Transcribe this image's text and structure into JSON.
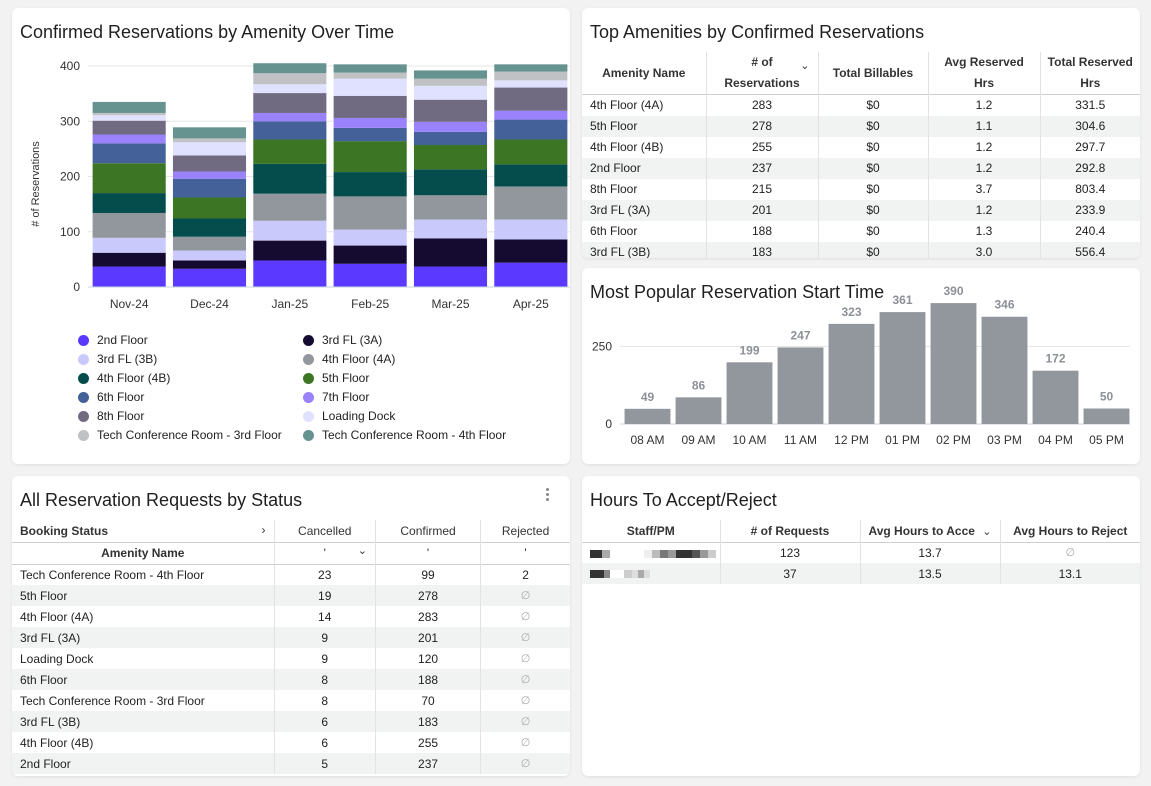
{
  "cards": {
    "stacked": {
      "title": "Confirmed Reservations by Amenity Over Time"
    },
    "top_amenities": {
      "title": "Top Amenities by Confirmed Reservations",
      "columns": [
        "Amenity Name",
        "# of Reservations",
        "Total Billables",
        "Avg Reserved Hrs",
        "Total Reserved Hrs"
      ],
      "column_lines": [
        [
          "Amenity Name"
        ],
        [
          "# of",
          "Reservations"
        ],
        [
          "Total Billables"
        ],
        [
          "Avg Reserved",
          "Hrs"
        ],
        [
          "Total Reserved",
          "Hrs"
        ]
      ],
      "sorted_column": "# of Reservations",
      "rows": [
        [
          "4th Floor (4A)",
          "283",
          "$0",
          "1.2",
          "331.5"
        ],
        [
          "5th Floor",
          "278",
          "$0",
          "1.1",
          "304.6"
        ],
        [
          "4th Floor (4B)",
          "255",
          "$0",
          "1.2",
          "297.7"
        ],
        [
          "2nd Floor",
          "237",
          "$0",
          "1.2",
          "292.8"
        ],
        [
          "8th Floor",
          "215",
          "$0",
          "3.7",
          "803.4"
        ],
        [
          "3rd FL (3A)",
          "201",
          "$0",
          "1.2",
          "233.9"
        ],
        [
          "6th Floor",
          "188",
          "$0",
          "1.3",
          "240.4"
        ],
        [
          "3rd FL (3B)",
          "183",
          "$0",
          "3.0",
          "556.4"
        ]
      ]
    },
    "start_time": {
      "title": "Most Popular Reservation Start Time"
    },
    "status": {
      "title": "All Reservation Requests by Status",
      "pivot_label": "Booking Status",
      "row_header": "Amenity Name",
      "columns": [
        "Cancelled",
        "Confirmed",
        "Rejected"
      ],
      "sub_marks": [
        "'",
        "'",
        "'"
      ],
      "null_symbol": "∅",
      "rows": [
        [
          "Tech Conference Room - 4th Floor",
          "23",
          "99",
          "2"
        ],
        [
          "5th Floor",
          "19",
          "278",
          null
        ],
        [
          "4th Floor (4A)",
          "14",
          "283",
          null
        ],
        [
          "3rd FL (3A)",
          "9",
          "201",
          null
        ],
        [
          "Loading Dock",
          "9",
          "120",
          null
        ],
        [
          "6th Floor",
          "8",
          "188",
          null
        ],
        [
          "Tech Conference Room - 3rd Floor",
          "8",
          "70",
          null
        ],
        [
          "3rd FL (3B)",
          "6",
          "183",
          null
        ],
        [
          "4th Floor (4B)",
          "6",
          "255",
          null
        ],
        [
          "2nd Floor",
          "5",
          "237",
          null
        ]
      ]
    },
    "hours": {
      "title": "Hours To Accept/Reject",
      "columns": [
        "Staff/PM",
        "# of Requests",
        "Avg Hours to Acce",
        "Avg Hours to Reject"
      ],
      "sorted_column": "Avg Hours to Acce",
      "null_symbol": "∅",
      "rows": [
        [
          "[redacted]",
          "123",
          "13.7",
          null
        ],
        [
          "[redacted]",
          "37",
          "13.5",
          "13.1"
        ]
      ]
    }
  },
  "icons": {
    "sort": "chevron-down-icon",
    "expand": "chevron-right-icon",
    "menu": "kebab-menu-icon",
    "null": "empty-set-icon"
  },
  "chart_data": [
    {
      "type": "bar",
      "stacked": true,
      "title": "Confirmed Reservations by Amenity Over Time",
      "xlabel": "",
      "ylabel": "# of Reservations",
      "ylim": [
        0,
        400
      ],
      "yticks": [
        0,
        100,
        200,
        300,
        400
      ],
      "grid": true,
      "legend_position": "bottom",
      "categories": [
        "Nov-24",
        "Dec-24",
        "Jan-25",
        "Feb-25",
        "Mar-25",
        "Apr-25"
      ],
      "series": [
        {
          "name": "2nd Floor",
          "color": "#5b39ff",
          "values": [
            37,
            33,
            48,
            42,
            37,
            44
          ]
        },
        {
          "name": "3rd FL (3A)",
          "color": "#150a30",
          "values": [
            25,
            15,
            36,
            33,
            51,
            42
          ]
        },
        {
          "name": "3rd FL (3B)",
          "color": "#c9c9fb",
          "values": [
            27,
            18,
            36,
            29,
            34,
            36
          ]
        },
        {
          "name": "4th Floor (4A)",
          "color": "#92979d",
          "values": [
            45,
            25,
            49,
            60,
            44,
            60
          ]
        },
        {
          "name": "4th Floor (4B)",
          "color": "#054c4c",
          "values": [
            36,
            33,
            54,
            44,
            47,
            40
          ]
        },
        {
          "name": "5th Floor",
          "color": "#3c7524",
          "values": [
            54,
            38,
            44,
            56,
            44,
            45
          ]
        },
        {
          "name": "6th Floor",
          "color": "#456199",
          "values": [
            36,
            34,
            33,
            24,
            24,
            36
          ]
        },
        {
          "name": "7th Floor",
          "color": "#9a82fc",
          "values": [
            16,
            13,
            15,
            18,
            18,
            16
          ]
        },
        {
          "name": "8th Floor",
          "color": "#716b82",
          "values": [
            25,
            29,
            36,
            40,
            40,
            42
          ]
        },
        {
          "name": "Loading Dock",
          "color": "#e0e0ff",
          "values": [
            10,
            24,
            16,
            31,
            25,
            13
          ]
        },
        {
          "name": "Tech Conference Room - 3rd Floor",
          "color": "#bfc1c4",
          "values": [
            4,
            7,
            20,
            11,
            13,
            16
          ]
        },
        {
          "name": "Tech Conference Room - 4th Floor",
          "color": "#669390",
          "values": [
            20,
            20,
            18,
            15,
            15,
            13
          ]
        }
      ]
    },
    {
      "type": "bar",
      "title": "Most Popular Reservation Start Time",
      "xlabel": "",
      "ylabel": "",
      "ylim": [
        0,
        400
      ],
      "yticks": [
        0,
        250
      ],
      "grid": true,
      "color": "#92979d",
      "categories": [
        "08 AM",
        "09 AM",
        "10 AM",
        "11 AM",
        "12 PM",
        "01 PM",
        "02 PM",
        "03 PM",
        "04 PM",
        "05 PM"
      ],
      "values": [
        49,
        86,
        199,
        247,
        323,
        361,
        390,
        346,
        172,
        50
      ]
    }
  ]
}
